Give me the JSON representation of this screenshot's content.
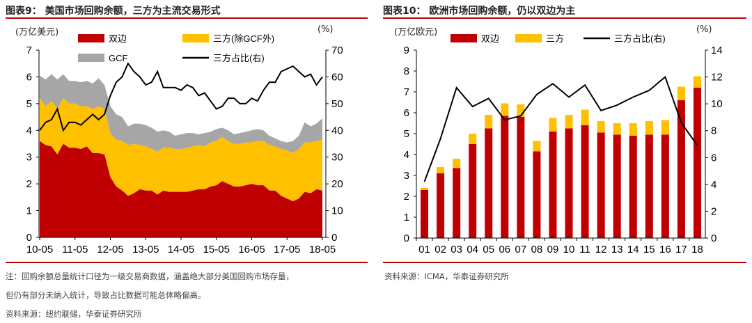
{
  "colors": {
    "bilateral": "#c00000",
    "triparty": "#ffc000",
    "gcf": "#a6a6a6",
    "line": "#000000",
    "accent": "#c00000"
  },
  "left_panel": {
    "title": "图表9： 美国市场回购余额，三方为主流交易形式",
    "unit_left": "(万亿美元)",
    "unit_right": "(%)",
    "notes": [
      "注：回购余额总量统计口径为一级交易商数据，涵盖绝大部分美国回购市场存量，",
      "但仍有部分未纳入统计，导致占比数据可能总体略偏高。"
    ],
    "source": "资料来源：纽约联储，华泰证券研究所"
  },
  "right_panel": {
    "title": "图表10： 欧洲市场回购余额，仍以双边为主",
    "unit_left": "(万亿欧元)",
    "unit_right": "(%)",
    "source": "资料来源：ICMA，华泰证券研究所"
  },
  "chart_data": [
    {
      "type": "area",
      "title": "美国市场回购余额，三方为主流交易形式",
      "x_ticks": [
        "10-05",
        "11-05",
        "12-05",
        "13-05",
        "14-05",
        "15-05",
        "16-05",
        "17-05",
        "18-05"
      ],
      "x_step": "2 months",
      "ylim": [
        0,
        7
      ],
      "y2lim": [
        0,
        70
      ],
      "y_ticks": [
        "0",
        "1",
        "2",
        "3",
        "4",
        "5",
        "6",
        "7"
      ],
      "y2_ticks": [
        "0",
        "10",
        "20",
        "30",
        "40",
        "50",
        "60",
        "70"
      ],
      "legend": [
        "双边",
        "三方(除GCF外)",
        "GCF",
        "三方占比(右)"
      ],
      "series": [
        {
          "name": "双边",
          "stack": true,
          "values": [
            3.6,
            3.45,
            3.4,
            3.1,
            3.5,
            3.35,
            3.35,
            3.3,
            3.4,
            3.15,
            3.15,
            3.1,
            2.25,
            1.9,
            1.75,
            1.55,
            1.65,
            1.8,
            1.75,
            1.75,
            1.6,
            1.75,
            1.7,
            1.7,
            1.7,
            1.7,
            1.75,
            1.8,
            1.8,
            1.9,
            1.95,
            2.1,
            2.0,
            1.9,
            1.9,
            1.95,
            2.0,
            1.95,
            1.95,
            1.75,
            1.75,
            1.55,
            1.45,
            1.35,
            1.45,
            1.7,
            1.65,
            1.8,
            1.75
          ]
        },
        {
          "name": "三方(除GCF外)",
          "stack": true,
          "values": [
            1.6,
            1.45,
            1.7,
            1.7,
            1.7,
            1.65,
            1.65,
            1.6,
            1.5,
            1.65,
            1.75,
            1.7,
            1.65,
            1.75,
            1.85,
            1.9,
            1.85,
            1.65,
            1.65,
            1.55,
            1.6,
            1.6,
            1.65,
            1.6,
            1.6,
            1.65,
            1.65,
            1.65,
            1.6,
            1.65,
            1.65,
            1.65,
            1.6,
            1.6,
            1.6,
            1.6,
            1.55,
            1.65,
            1.65,
            1.7,
            1.65,
            1.75,
            1.8,
            1.8,
            1.85,
            1.85,
            1.9,
            1.8,
            1.9
          ]
        },
        {
          "name": "GCF",
          "stack": true,
          "values": [
            0.85,
            1.0,
            1.0,
            1.1,
            0.9,
            0.85,
            0.85,
            0.9,
            0.95,
            0.95,
            1.05,
            0.9,
            1.0,
            0.95,
            0.9,
            0.7,
            0.75,
            0.8,
            0.8,
            0.8,
            0.75,
            0.65,
            0.6,
            0.5,
            0.55,
            0.55,
            0.5,
            0.4,
            0.5,
            0.4,
            0.45,
            0.35,
            0.4,
            0.35,
            0.4,
            0.4,
            0.45,
            0.45,
            0.4,
            0.35,
            0.3,
            0.3,
            0.3,
            0.45,
            0.5,
            0.75,
            0.6,
            0.65,
            0.8
          ]
        },
        {
          "name": "三方占比(右)",
          "axis": "right",
          "values": [
            40,
            43,
            44,
            48,
            40,
            43,
            43,
            42,
            44,
            46,
            44,
            46,
            53,
            58,
            60,
            65,
            62,
            60,
            57,
            58,
            62,
            56,
            56,
            56,
            55,
            57,
            56,
            53,
            54,
            51,
            48,
            49,
            52,
            52,
            50,
            50,
            52,
            51,
            55,
            58,
            58,
            62,
            63,
            64,
            62,
            60,
            61,
            57,
            60
          ]
        }
      ]
    },
    {
      "type": "bar",
      "title": "欧洲市场回购余额，仍以双边为主",
      "categories": [
        "01",
        "02",
        "03",
        "04",
        "05",
        "06",
        "07",
        "08",
        "09",
        "10",
        "11",
        "12",
        "13",
        "14",
        "15",
        "16",
        "17",
        "18"
      ],
      "ylim": [
        0,
        9
      ],
      "y2lim": [
        0,
        14
      ],
      "y_ticks": [
        "0",
        "1",
        "2",
        "3",
        "4",
        "5",
        "6",
        "7",
        "8",
        "9"
      ],
      "y2_ticks": [
        "0",
        "2",
        "4",
        "6",
        "8",
        "10",
        "12",
        "14"
      ],
      "legend": [
        "双边",
        "三方",
        "三方占比(右)"
      ],
      "series": [
        {
          "name": "双边",
          "values": [
            2.3,
            3.1,
            3.35,
            4.5,
            5.25,
            5.85,
            5.8,
            4.15,
            5.1,
            5.25,
            5.4,
            5.05,
            4.95,
            4.9,
            4.95,
            4.95,
            6.6,
            7.2
          ]
        },
        {
          "name": "三方",
          "values": [
            0.1,
            0.3,
            0.45,
            0.5,
            0.65,
            0.6,
            0.6,
            0.5,
            0.65,
            0.65,
            0.75,
            0.55,
            0.55,
            0.6,
            0.65,
            0.7,
            0.65,
            0.55
          ]
        },
        {
          "name": "三方占比(右)",
          "axis": "right",
          "values": [
            4.2,
            7.4,
            11.2,
            9.8,
            10.4,
            8.8,
            9.1,
            10.7,
            11.5,
            10.5,
            11.4,
            9.5,
            9.9,
            10.5,
            11.0,
            12.0,
            8.6,
            6.9
          ]
        }
      ]
    }
  ]
}
